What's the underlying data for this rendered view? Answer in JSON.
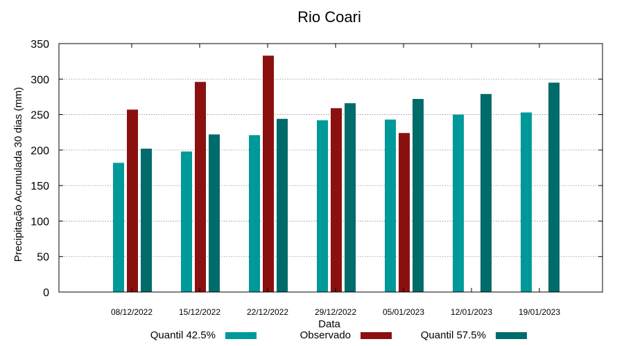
{
  "chart_data": {
    "type": "bar",
    "title": "Rio Coari",
    "xlabel": "Data",
    "ylabel": "Precipitação Acumulada 30 dias (mm)",
    "ylim": [
      0,
      350
    ],
    "yticks": [
      0,
      50,
      100,
      150,
      200,
      250,
      300,
      350
    ],
    "grid": true,
    "legend_position": "bottom",
    "categories": [
      "08/12/2022",
      "15/12/2022",
      "22/12/2022",
      "29/12/2022",
      "05/01/2023",
      "12/01/2023",
      "19/01/2023"
    ],
    "series": [
      {
        "name": "Quantil 42.5%",
        "color": "#009999",
        "values": [
          182,
          198,
          221,
          242,
          243,
          250,
          253
        ]
      },
      {
        "name": "Observado",
        "color": "#8b1010",
        "values": [
          257,
          296,
          333,
          259,
          224,
          null,
          null
        ]
      },
      {
        "name": "Quantil 57.5%",
        "color": "#006b6b",
        "values": [
          202,
          222,
          244,
          266,
          272,
          279,
          295
        ]
      }
    ]
  }
}
